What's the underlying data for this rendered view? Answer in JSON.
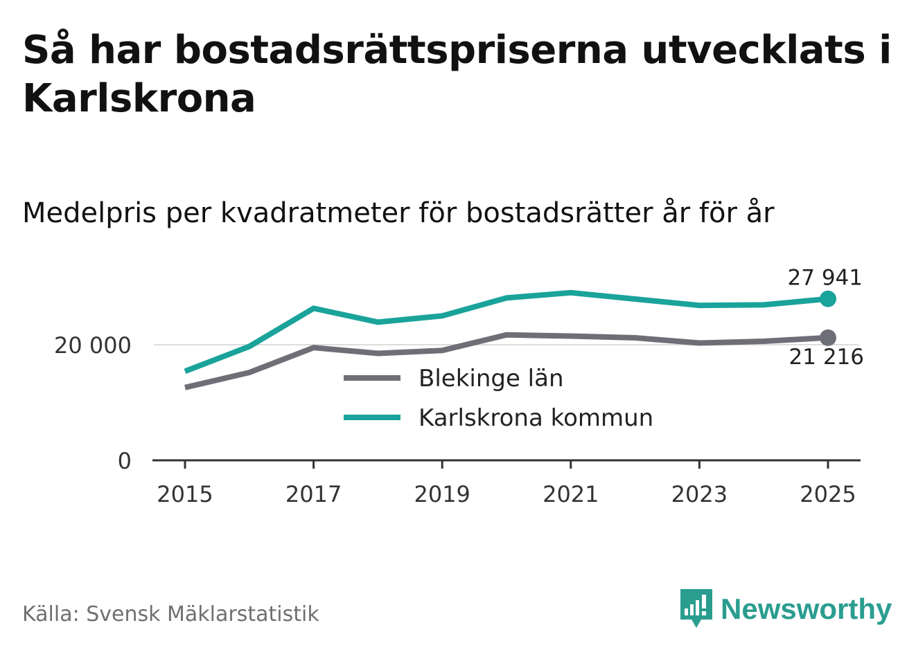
{
  "title": "Så har bostadsrättspriserna utvecklats i Karlskrona",
  "subtitle": "Medelpris per kvadratmeter för bostadsrätter år för år",
  "source": "Källa: Svensk Mäklarstatistik",
  "brand": {
    "name": "Newsworthy",
    "color": "#2a9d8f",
    "icon": "bar-chart-logo-icon"
  },
  "colors": {
    "karlskrona": "#1aa39a",
    "blekinge": "#6e6e76",
    "axis": "#333333",
    "grid": "#dcdcdc"
  },
  "chart_data": {
    "type": "line",
    "x": [
      2015,
      2016,
      2017,
      2018,
      2019,
      2020,
      2021,
      2022,
      2023,
      2024,
      2025
    ],
    "xticks": [
      2015,
      2017,
      2019,
      2021,
      2023,
      2025
    ],
    "xtick_labels": [
      "2015",
      "2017",
      "2019",
      "2021",
      "2023",
      "2025"
    ],
    "yticks": [
      0,
      20000
    ],
    "ytick_labels": [
      "0",
      "20 000"
    ],
    "ylim": [
      0,
      30000
    ],
    "grid": true,
    "legend_position": "center",
    "series": [
      {
        "name": "Blekinge län",
        "color": "#6e6e76",
        "values": [
          12600,
          15200,
          19500,
          18500,
          19000,
          21700,
          21500,
          21200,
          20300,
          20600,
          21216
        ],
        "end_label": "21 216"
      },
      {
        "name": "Karlskrona kommun",
        "color": "#1aa39a",
        "values": [
          15400,
          19700,
          26300,
          23900,
          25000,
          28100,
          29000,
          27900,
          26800,
          26900,
          27941
        ],
        "end_label": "27 941"
      }
    ]
  }
}
